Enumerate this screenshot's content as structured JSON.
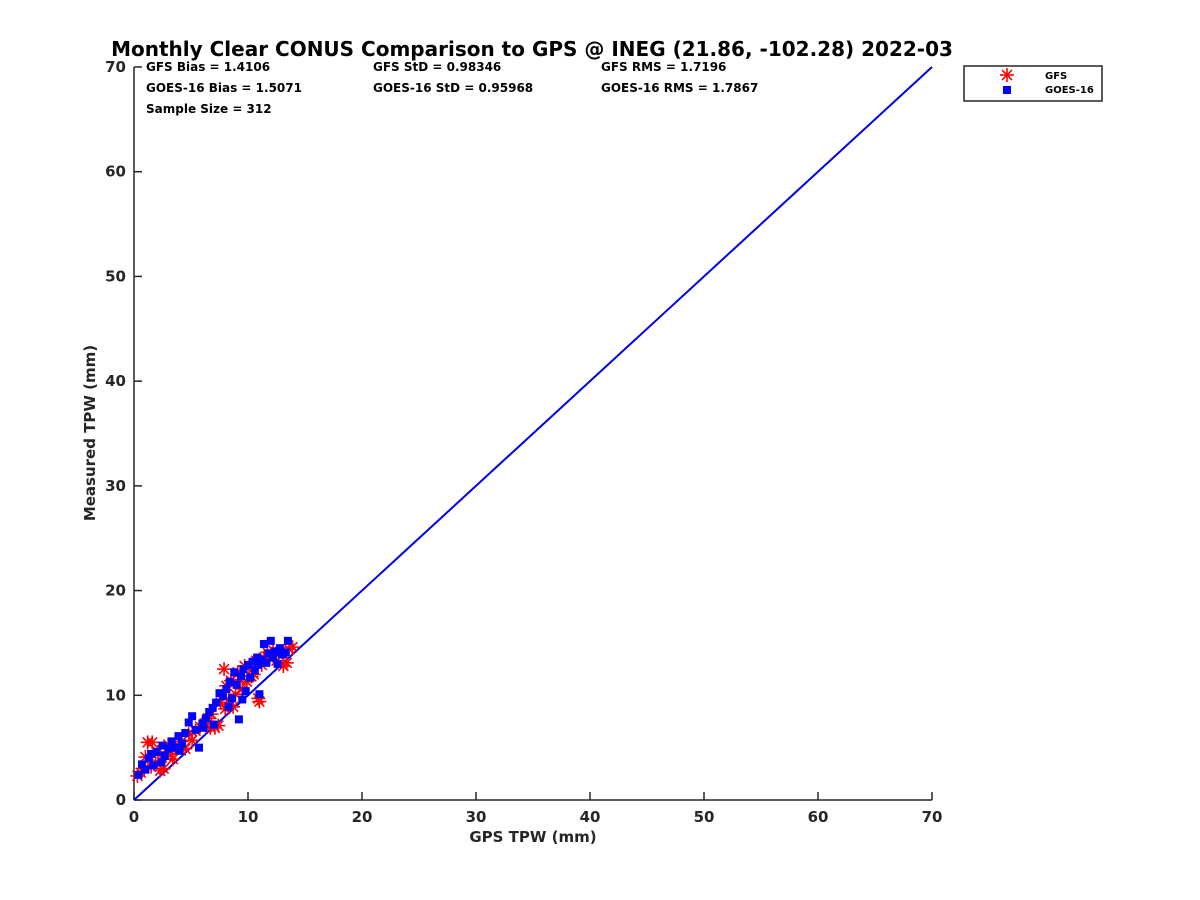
{
  "chart_data": {
    "type": "scatter",
    "title": "Monthly Clear CONUS Comparison to GPS @ INEG (21.86, -102.28) 2022-03",
    "xlabel": "GPS TPW (mm)",
    "ylabel": "Measured TPW (mm)",
    "xlim": [
      0,
      70
    ],
    "ylim": [
      0,
      70
    ],
    "xticks": [
      "0",
      "10",
      "20",
      "30",
      "40",
      "50",
      "60",
      "70"
    ],
    "yticks": [
      "0",
      "10",
      "20",
      "30",
      "40",
      "50",
      "60",
      "70"
    ],
    "grid": false,
    "legend_position": "outside top-right",
    "stats": {
      "gfs_bias": "GFS Bias = 1.4106",
      "gfs_std": "GFS StD = 0.98346",
      "gfs_rms": "GFS RMS = 1.7196",
      "goes_bias": "GOES-16 Bias = 1.5071",
      "goes_std": "GOES-16 StD = 0.95968",
      "goes_rms": "GOES-16 RMS = 1.7867",
      "sample_size": "Sample Size = 312"
    },
    "reference_line": {
      "name": "1:1 line",
      "color": "#0000ee",
      "x": [
        0,
        70
      ],
      "y": [
        0,
        70
      ]
    },
    "series": [
      {
        "name": "GFS",
        "marker": "asterisk",
        "color": "#ff0000",
        "points": [
          [
            0.3,
            2.3
          ],
          [
            0.6,
            2.6
          ],
          [
            0.9,
            3.0
          ],
          [
            1.2,
            5.5
          ],
          [
            1.6,
            5.5
          ],
          [
            1.5,
            3.2
          ],
          [
            1.9,
            3.6
          ],
          [
            2.3,
            2.8
          ],
          [
            2.6,
            3.0
          ],
          [
            2.8,
            4.2
          ],
          [
            3.0,
            5.3
          ],
          [
            3.2,
            4.4
          ],
          [
            3.6,
            4.9
          ],
          [
            3.9,
            5.2
          ],
          [
            4.2,
            5.6
          ],
          [
            4.5,
            4.9
          ],
          [
            4.8,
            6.3
          ],
          [
            5.1,
            5.7
          ],
          [
            5.4,
            6.6
          ],
          [
            5.8,
            7.0
          ],
          [
            6.2,
            7.3
          ],
          [
            6.5,
            7.8
          ],
          [
            6.8,
            8.2
          ],
          [
            7.1,
            6.9
          ],
          [
            7.4,
            7.1
          ],
          [
            7.6,
            9.3
          ],
          [
            7.9,
            12.5
          ],
          [
            8.1,
            10.9
          ],
          [
            8.3,
            9.6
          ],
          [
            8.5,
            11.4
          ],
          [
            8.7,
            8.9
          ],
          [
            8.9,
            10.1
          ],
          [
            9.1,
            12.2
          ],
          [
            9.3,
            11.5
          ],
          [
            9.5,
            10.6
          ],
          [
            9.7,
            12.8
          ],
          [
            9.9,
            11.3
          ],
          [
            10.1,
            12.7
          ],
          [
            10.3,
            11.8
          ],
          [
            10.5,
            12.0
          ],
          [
            10.7,
            13.3
          ],
          [
            10.9,
            9.7
          ],
          [
            11.0,
            9.4
          ],
          [
            11.2,
            12.9
          ],
          [
            11.4,
            13.6
          ],
          [
            11.7,
            14.1
          ],
          [
            11.9,
            13.5
          ],
          [
            12.2,
            14.3
          ],
          [
            12.5,
            13.3
          ],
          [
            12.7,
            13.9
          ],
          [
            12.9,
            14.2
          ],
          [
            13.1,
            12.8
          ],
          [
            13.4,
            13.1
          ],
          [
            13.6,
            14.4
          ],
          [
            13.9,
            14.6
          ],
          [
            1.0,
            4.1
          ],
          [
            2.1,
            4.6
          ],
          [
            3.4,
            3.9
          ],
          [
            6.7,
            6.9
          ],
          [
            8.0,
            8.7
          ]
        ]
      },
      {
        "name": "GOES-16",
        "marker": "square",
        "color": "#0000ff",
        "points": [
          [
            0.4,
            2.4
          ],
          [
            0.7,
            3.4
          ],
          [
            1.0,
            2.9
          ],
          [
            1.3,
            4.0
          ],
          [
            1.7,
            3.3
          ],
          [
            2.0,
            4.6
          ],
          [
            2.4,
            3.6
          ],
          [
            2.7,
            4.2
          ],
          [
            3.0,
            4.9
          ],
          [
            3.3,
            5.6
          ],
          [
            3.6,
            5.0
          ],
          [
            3.9,
            6.1
          ],
          [
            4.2,
            5.4
          ],
          [
            4.5,
            6.4
          ],
          [
            4.8,
            7.4
          ],
          [
            5.1,
            8.0
          ],
          [
            5.4,
            6.7
          ],
          [
            5.7,
            5.0
          ],
          [
            6.0,
            7.3
          ],
          [
            6.3,
            7.8
          ],
          [
            6.6,
            8.4
          ],
          [
            6.9,
            8.8
          ],
          [
            7.2,
            9.3
          ],
          [
            7.5,
            10.2
          ],
          [
            7.8,
            9.9
          ],
          [
            8.1,
            10.6
          ],
          [
            8.4,
            11.3
          ],
          [
            8.6,
            9.7
          ],
          [
            8.8,
            12.2
          ],
          [
            9.0,
            11.0
          ],
          [
            9.2,
            7.7
          ],
          [
            9.4,
            11.8
          ],
          [
            9.6,
            12.5
          ],
          [
            9.8,
            10.4
          ],
          [
            10.0,
            12.9
          ],
          [
            10.2,
            11.7
          ],
          [
            10.4,
            13.2
          ],
          [
            10.6,
            12.4
          ],
          [
            10.8,
            13.6
          ],
          [
            11.0,
            10.1
          ],
          [
            11.2,
            13.4
          ],
          [
            11.4,
            14.9
          ],
          [
            11.6,
            13.1
          ],
          [
            11.8,
            14.0
          ],
          [
            12.0,
            15.2
          ],
          [
            12.2,
            13.6
          ],
          [
            12.4,
            14.2
          ],
          [
            12.6,
            13.0
          ],
          [
            12.8,
            14.5
          ],
          [
            13.0,
            13.9
          ],
          [
            13.3,
            14.1
          ],
          [
            13.5,
            15.2
          ],
          [
            1.5,
            4.4
          ],
          [
            2.5,
            5.2
          ],
          [
            4.0,
            4.7
          ],
          [
            6.1,
            6.9
          ],
          [
            7.0,
            7.2
          ],
          [
            8.3,
            8.9
          ],
          [
            9.5,
            9.6
          ],
          [
            10.9,
            12.9
          ]
        ]
      }
    ]
  }
}
